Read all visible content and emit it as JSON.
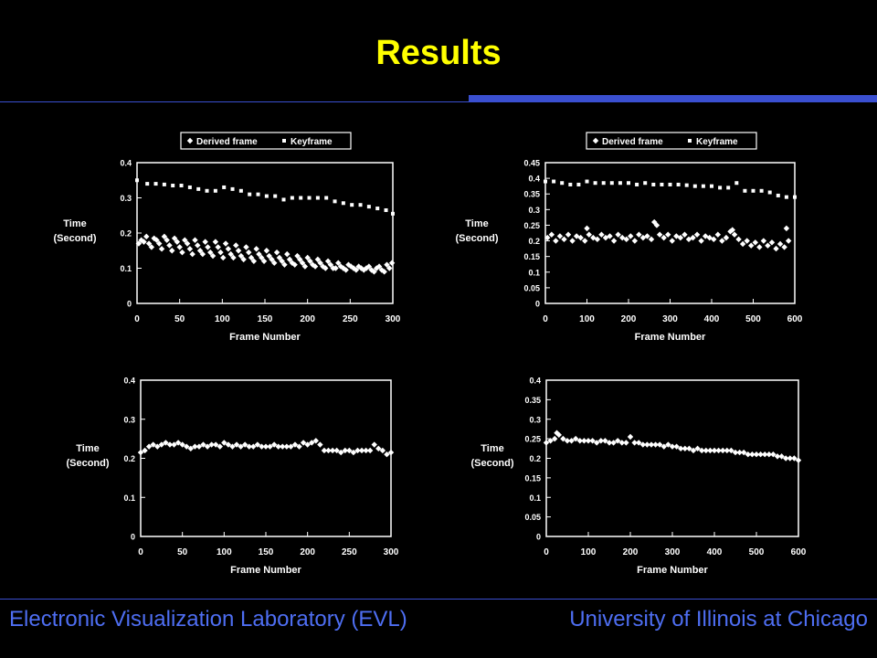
{
  "title": "Results",
  "footer": {
    "left": "Electronic Visualization Laboratory (EVL)",
    "right": "University of Illinois at Chicago"
  },
  "colors": {
    "title": "#ffff00",
    "footer": "#4e6ef2",
    "rule": "#3a4fd0",
    "ink": "#ffffff"
  },
  "chart_data": [
    {
      "type": "scatter",
      "xlabel": "Frame Number",
      "ylabel": [
        "Time",
        "(Second)"
      ],
      "xlim": [
        0,
        300
      ],
      "ylim": [
        0,
        0.4
      ],
      "xticks": [
        0,
        50,
        100,
        150,
        200,
        250,
        300
      ],
      "yticks": [
        0,
        0.1,
        0.2,
        0.3,
        0.4
      ],
      "ytick_labels": [
        "0",
        "0.1",
        "0.2",
        "0.3",
        "0.4"
      ],
      "legend": [
        "Derived frame",
        "Keyframe"
      ],
      "series": [
        {
          "name": "Derived frame",
          "marker": "diamond",
          "x": [
            2,
            5,
            8,
            11,
            14,
            17,
            20,
            23,
            26,
            29,
            32,
            35,
            38,
            41,
            44,
            47,
            50,
            53,
            56,
            59,
            62,
            65,
            68,
            71,
            74,
            77,
            80,
            83,
            86,
            89,
            92,
            95,
            98,
            101,
            104,
            107,
            110,
            113,
            116,
            119,
            122,
            125,
            128,
            131,
            134,
            137,
            140,
            143,
            146,
            149,
            152,
            155,
            158,
            161,
            164,
            167,
            170,
            173,
            176,
            179,
            182,
            185,
            188,
            191,
            194,
            197,
            200,
            203,
            206,
            209,
            212,
            215,
            218,
            221,
            224,
            227,
            230,
            233,
            236,
            239,
            242,
            245,
            248,
            251,
            254,
            257,
            260,
            263,
            266,
            269,
            272,
            275,
            278,
            281,
            284,
            287,
            290,
            293,
            296,
            299
          ],
          "y": [
            0.17,
            0.18,
            0.175,
            0.19,
            0.17,
            0.16,
            0.185,
            0.18,
            0.17,
            0.155,
            0.19,
            0.18,
            0.165,
            0.15,
            0.185,
            0.175,
            0.16,
            0.145,
            0.18,
            0.17,
            0.155,
            0.14,
            0.18,
            0.165,
            0.15,
            0.14,
            0.175,
            0.16,
            0.145,
            0.135,
            0.175,
            0.16,
            0.145,
            0.13,
            0.17,
            0.155,
            0.14,
            0.13,
            0.165,
            0.15,
            0.135,
            0.125,
            0.16,
            0.145,
            0.13,
            0.12,
            0.155,
            0.14,
            0.13,
            0.12,
            0.15,
            0.135,
            0.125,
            0.115,
            0.145,
            0.13,
            0.12,
            0.11,
            0.14,
            0.125,
            0.115,
            0.11,
            0.135,
            0.125,
            0.115,
            0.105,
            0.13,
            0.12,
            0.11,
            0.105,
            0.125,
            0.115,
            0.105,
            0.1,
            0.12,
            0.11,
            0.1,
            0.1,
            0.115,
            0.105,
            0.1,
            0.095,
            0.11,
            0.105,
            0.1,
            0.095,
            0.105,
            0.1,
            0.095,
            0.1,
            0.105,
            0.095,
            0.09,
            0.1,
            0.105,
            0.095,
            0.09,
            0.11,
            0.1,
            0.115
          ]
        },
        {
          "name": "Keyframe",
          "marker": "square",
          "x": [
            0,
            12,
            22,
            32,
            42,
            52,
            62,
            72,
            82,
            92,
            102,
            112,
            122,
            132,
            142,
            152,
            162,
            172,
            182,
            192,
            202,
            212,
            222,
            232,
            242,
            252,
            262,
            272,
            282,
            292,
            300
          ],
          "y": [
            0.35,
            0.34,
            0.34,
            0.338,
            0.335,
            0.335,
            0.33,
            0.325,
            0.32,
            0.32,
            0.33,
            0.325,
            0.32,
            0.31,
            0.31,
            0.305,
            0.305,
            0.295,
            0.3,
            0.3,
            0.3,
            0.3,
            0.3,
            0.29,
            0.285,
            0.28,
            0.28,
            0.275,
            0.27,
            0.265,
            0.255
          ]
        }
      ]
    },
    {
      "type": "scatter",
      "xlabel": "Frame Number",
      "ylabel": [
        "Time",
        "(Second)"
      ],
      "xlim": [
        0,
        600
      ],
      "ylim": [
        0,
        0.45
      ],
      "xticks": [
        0,
        100,
        200,
        300,
        400,
        500,
        600
      ],
      "yticks": [
        0,
        0.05,
        0.1,
        0.15,
        0.2,
        0.25,
        0.3,
        0.35,
        0.4,
        0.45
      ],
      "ytick_labels": [
        "0",
        "0.05",
        "0.1",
        "0.15",
        "0.2",
        "0.25",
        "0.3",
        "0.35",
        "0.4",
        "0.45"
      ],
      "legend": [
        "Derived frame",
        "Keyframe"
      ],
      "series": [
        {
          "name": "Derived frame",
          "marker": "diamond",
          "x": [
            5,
            15,
            25,
            35,
            45,
            55,
            65,
            75,
            85,
            95,
            100,
            105,
            115,
            125,
            135,
            145,
            155,
            165,
            175,
            185,
            195,
            205,
            215,
            225,
            235,
            245,
            255,
            262,
            268,
            275,
            285,
            295,
            305,
            315,
            325,
            335,
            345,
            355,
            365,
            375,
            385,
            395,
            405,
            415,
            425,
            435,
            445,
            450,
            455,
            465,
            475,
            485,
            495,
            505,
            515,
            525,
            535,
            545,
            555,
            565,
            575,
            580,
            585
          ],
          "y": [
            0.21,
            0.22,
            0.2,
            0.215,
            0.205,
            0.22,
            0.2,
            0.215,
            0.21,
            0.2,
            0.24,
            0.22,
            0.21,
            0.205,
            0.22,
            0.21,
            0.215,
            0.2,
            0.22,
            0.21,
            0.205,
            0.215,
            0.2,
            0.22,
            0.21,
            0.215,
            0.205,
            0.26,
            0.25,
            0.22,
            0.21,
            0.22,
            0.2,
            0.215,
            0.21,
            0.22,
            0.205,
            0.21,
            0.22,
            0.2,
            0.215,
            0.21,
            0.205,
            0.22,
            0.2,
            0.21,
            0.23,
            0.235,
            0.22,
            0.205,
            0.19,
            0.2,
            0.185,
            0.195,
            0.18,
            0.2,
            0.185,
            0.195,
            0.175,
            0.19,
            0.18,
            0.24,
            0.2
          ]
        },
        {
          "name": "Keyframe",
          "marker": "square",
          "x": [
            0,
            20,
            40,
            60,
            80,
            100,
            120,
            140,
            160,
            180,
            200,
            220,
            240,
            260,
            280,
            300,
            320,
            340,
            360,
            380,
            400,
            420,
            440,
            460,
            480,
            500,
            520,
            540,
            560,
            580,
            600
          ],
          "y": [
            0.39,
            0.39,
            0.385,
            0.38,
            0.38,
            0.39,
            0.385,
            0.385,
            0.385,
            0.385,
            0.385,
            0.38,
            0.385,
            0.38,
            0.38,
            0.38,
            0.38,
            0.378,
            0.375,
            0.375,
            0.375,
            0.37,
            0.37,
            0.385,
            0.36,
            0.36,
            0.36,
            0.355,
            0.345,
            0.34,
            0.34
          ]
        }
      ]
    },
    {
      "type": "scatter",
      "xlabel": "Frame Number",
      "ylabel": [
        "Time",
        "(Second)"
      ],
      "xlim": [
        0,
        300
      ],
      "ylim": [
        0,
        0.4
      ],
      "xticks": [
        0,
        50,
        100,
        150,
        200,
        250,
        300
      ],
      "yticks": [
        0,
        0.1,
        0.2,
        0.3,
        0.4
      ],
      "ytick_labels": [
        "0",
        "0.1",
        "0.2",
        "0.3",
        "0.4"
      ],
      "legend": [],
      "series": [
        {
          "name": "",
          "marker": "diamond",
          "x": [
            0,
            5,
            10,
            15,
            20,
            25,
            30,
            35,
            40,
            45,
            50,
            55,
            60,
            65,
            70,
            75,
            80,
            85,
            90,
            95,
            100,
            105,
            110,
            115,
            120,
            125,
            130,
            135,
            140,
            145,
            150,
            155,
            160,
            165,
            170,
            175,
            180,
            185,
            190,
            195,
            200,
            205,
            210,
            215,
            220,
            225,
            230,
            235,
            240,
            245,
            250,
            255,
            260,
            265,
            270,
            275,
            280,
            285,
            290,
            295,
            300
          ],
          "y": [
            0.215,
            0.22,
            0.23,
            0.235,
            0.23,
            0.235,
            0.24,
            0.235,
            0.235,
            0.24,
            0.235,
            0.23,
            0.225,
            0.23,
            0.23,
            0.235,
            0.23,
            0.235,
            0.235,
            0.23,
            0.24,
            0.235,
            0.23,
            0.235,
            0.23,
            0.235,
            0.23,
            0.23,
            0.235,
            0.23,
            0.23,
            0.23,
            0.235,
            0.23,
            0.23,
            0.23,
            0.23,
            0.235,
            0.23,
            0.24,
            0.235,
            0.24,
            0.245,
            0.235,
            0.22,
            0.22,
            0.22,
            0.22,
            0.215,
            0.22,
            0.22,
            0.215,
            0.22,
            0.22,
            0.22,
            0.22,
            0.235,
            0.225,
            0.22,
            0.21,
            0.215
          ]
        }
      ]
    },
    {
      "type": "scatter",
      "xlabel": "Frame Number",
      "ylabel": [
        "Time",
        "(Second)"
      ],
      "xlim": [
        0,
        600
      ],
      "ylim": [
        0,
        0.4
      ],
      "xticks": [
        0,
        100,
        200,
        300,
        400,
        500,
        600
      ],
      "yticks": [
        0,
        0.05,
        0.1,
        0.15,
        0.2,
        0.25,
        0.3,
        0.35,
        0.4
      ],
      "ytick_labels": [
        "0",
        "0.05",
        "0.1",
        "0.15",
        "0.2",
        "0.25",
        "0.3",
        "0.35",
        "0.4"
      ],
      "legend": [],
      "series": [
        {
          "name": "",
          "marker": "diamond",
          "x": [
            0,
            10,
            20,
            25,
            30,
            40,
            50,
            60,
            70,
            80,
            90,
            100,
            110,
            120,
            130,
            140,
            150,
            160,
            170,
            180,
            190,
            200,
            210,
            220,
            230,
            240,
            250,
            260,
            270,
            280,
            290,
            300,
            310,
            320,
            330,
            340,
            350,
            360,
            370,
            380,
            390,
            400,
            410,
            420,
            430,
            440,
            450,
            460,
            470,
            480,
            490,
            500,
            510,
            520,
            530,
            540,
            550,
            560,
            570,
            580,
            590,
            600
          ],
          "y": [
            0.24,
            0.245,
            0.25,
            0.265,
            0.26,
            0.25,
            0.245,
            0.245,
            0.25,
            0.245,
            0.245,
            0.245,
            0.245,
            0.24,
            0.245,
            0.245,
            0.24,
            0.24,
            0.245,
            0.24,
            0.24,
            0.255,
            0.24,
            0.24,
            0.235,
            0.235,
            0.235,
            0.235,
            0.235,
            0.23,
            0.235,
            0.23,
            0.23,
            0.225,
            0.225,
            0.225,
            0.22,
            0.225,
            0.22,
            0.22,
            0.22,
            0.22,
            0.22,
            0.22,
            0.22,
            0.22,
            0.215,
            0.215,
            0.215,
            0.21,
            0.21,
            0.21,
            0.21,
            0.21,
            0.21,
            0.21,
            0.205,
            0.205,
            0.2,
            0.2,
            0.2,
            0.195
          ]
        }
      ]
    }
  ]
}
